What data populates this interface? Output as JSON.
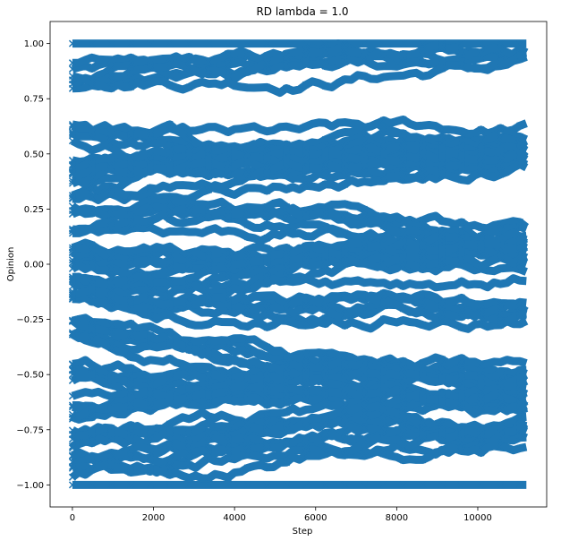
{
  "chart_data": {
    "type": "line",
    "title": "RD lambda = 1.0",
    "xlabel": "Step",
    "ylabel": "Opinion",
    "xlim": [
      -550,
      11700
    ],
    "ylim": [
      -1.1,
      1.1
    ],
    "x_ticks": [
      0,
      2000,
      4000,
      6000,
      8000,
      10000
    ],
    "x_tick_labels": [
      "0",
      "2000",
      "4000",
      "6000",
      "8000",
      "10000"
    ],
    "y_ticks": [
      1.0,
      0.75,
      0.5,
      0.25,
      0.0,
      -0.25,
      -0.5,
      -0.75,
      -1.0
    ],
    "y_tick_labels": [
      "1.00",
      "0.75",
      "0.50",
      "0.25",
      "0.00",
      "−0.25",
      "−0.50",
      "−0.75",
      "−1.00"
    ],
    "marker": "x",
    "grid": false,
    "color": "#1f77b4",
    "x_range_of_data": [
      0,
      11200
    ],
    "series_description": "many agent opinion trajectories",
    "series": [
      {
        "x": [
          0,
          2000,
          4000,
          6000,
          8000,
          10000,
          11200
        ],
        "values": [
          1.0,
          1.0,
          1.0,
          1.0,
          1.0,
          1.0,
          1.0
        ]
      },
      {
        "x": [
          0,
          2000,
          4000,
          6000,
          8000,
          10000,
          11200
        ],
        "values": [
          -1.0,
          -1.0,
          -1.0,
          -1.0,
          -1.0,
          -1.0,
          -1.0
        ]
      },
      {
        "x": [
          0,
          2000,
          4000,
          6000,
          8000,
          10000,
          11200
        ],
        "values": [
          0.85,
          0.87,
          0.88,
          0.9,
          0.92,
          0.93,
          0.95
        ]
      },
      {
        "x": [
          0,
          2000,
          4000,
          6000,
          8000,
          10000,
          11200
        ],
        "values": [
          0.6,
          0.55,
          0.52,
          0.52,
          0.53,
          0.55,
          0.57
        ]
      },
      {
        "x": [
          0,
          2000,
          4000,
          6000,
          8000,
          10000,
          11200
        ],
        "values": [
          0.45,
          0.5,
          0.5,
          0.5,
          0.5,
          0.5,
          0.5
        ]
      },
      {
        "x": [
          0,
          2000,
          4000,
          6000,
          8000,
          10000,
          11200
        ],
        "values": [
          0.35,
          0.37,
          0.4,
          0.42,
          0.45,
          0.48,
          0.5
        ]
      },
      {
        "x": [
          0,
          2000,
          4000,
          6000,
          8000,
          10000,
          11200
        ],
        "values": [
          0.2,
          0.22,
          0.2,
          0.18,
          0.15,
          0.12,
          0.1
        ]
      },
      {
        "x": [
          0,
          2000,
          4000,
          6000,
          8000,
          10000,
          11200
        ],
        "values": [
          0.05,
          0.02,
          0.0,
          0.02,
          0.03,
          0.05,
          0.05
        ]
      },
      {
        "x": [
          0,
          2000,
          4000,
          6000,
          8000,
          10000,
          11200
        ],
        "values": [
          -0.05,
          -0.08,
          -0.05,
          0.0,
          0.0,
          0.0,
          0.0
        ]
      },
      {
        "x": [
          0,
          2000,
          4000,
          6000,
          8000,
          10000,
          11200
        ],
        "values": [
          -0.15,
          -0.18,
          -0.2,
          -0.2,
          -0.18,
          -0.2,
          -0.22
        ]
      },
      {
        "x": [
          0,
          2000,
          4000,
          6000,
          8000,
          10000,
          11200
        ],
        "values": [
          -0.3,
          -0.35,
          -0.4,
          -0.45,
          -0.48,
          -0.5,
          -0.5
        ]
      },
      {
        "x": [
          0,
          2000,
          4000,
          6000,
          8000,
          10000,
          11200
        ],
        "values": [
          -0.5,
          -0.55,
          -0.55,
          -0.52,
          -0.5,
          -0.52,
          -0.55
        ]
      },
      {
        "x": [
          0,
          2000,
          4000,
          6000,
          8000,
          10000,
          11200
        ],
        "values": [
          -0.65,
          -0.6,
          -0.58,
          -0.6,
          -0.62,
          -0.6,
          -0.6
        ]
      },
      {
        "x": [
          0,
          2000,
          4000,
          6000,
          8000,
          10000,
          11200
        ],
        "values": [
          -0.8,
          -0.78,
          -0.75,
          -0.72,
          -0.7,
          -0.75,
          -0.72
        ]
      },
      {
        "x": [
          0,
          2000,
          4000,
          6000,
          8000,
          10000,
          11200
        ],
        "values": [
          -0.9,
          -0.88,
          -0.85,
          -0.8,
          -0.78,
          -0.78,
          -0.75
        ]
      }
    ]
  }
}
